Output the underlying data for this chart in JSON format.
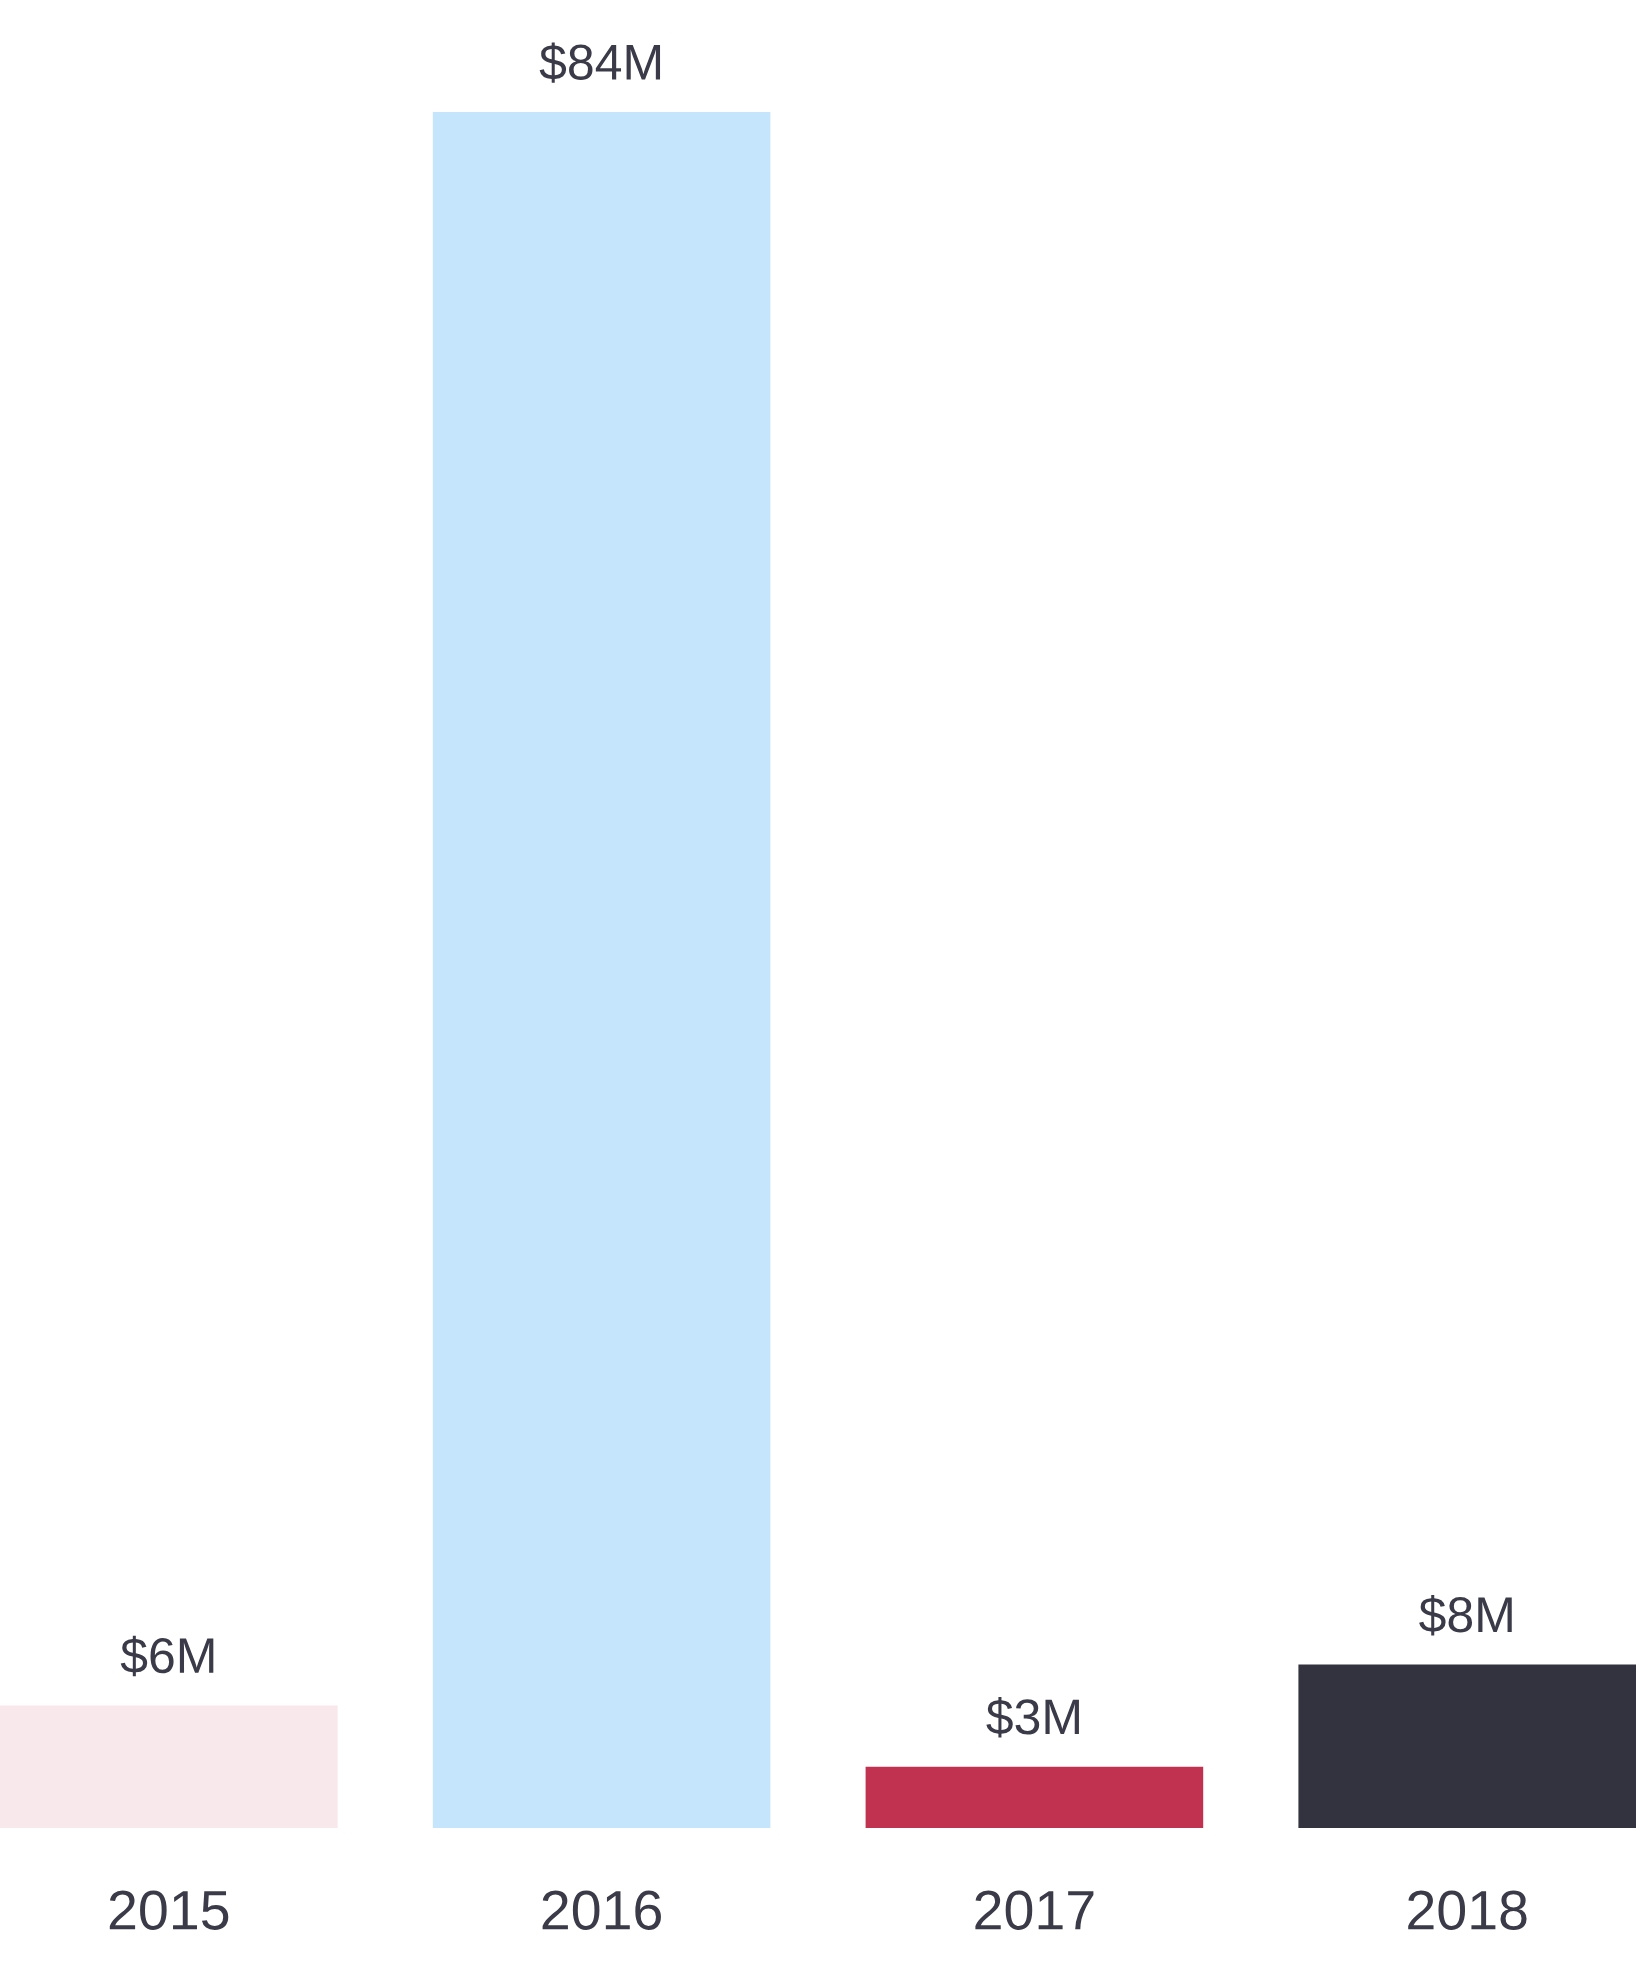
{
  "chart_data": {
    "type": "bar",
    "categories": [
      "2015",
      "2016",
      "2017",
      "2018"
    ],
    "values": [
      6,
      84,
      3,
      8
    ],
    "value_labels": [
      "$6M",
      "$84M",
      "$3M",
      "$8M"
    ],
    "colors": [
      "#f8e8ec",
      "#c5e5fd",
      "#c0324f",
      "#32333f"
    ],
    "grid": false,
    "legend": false
  }
}
